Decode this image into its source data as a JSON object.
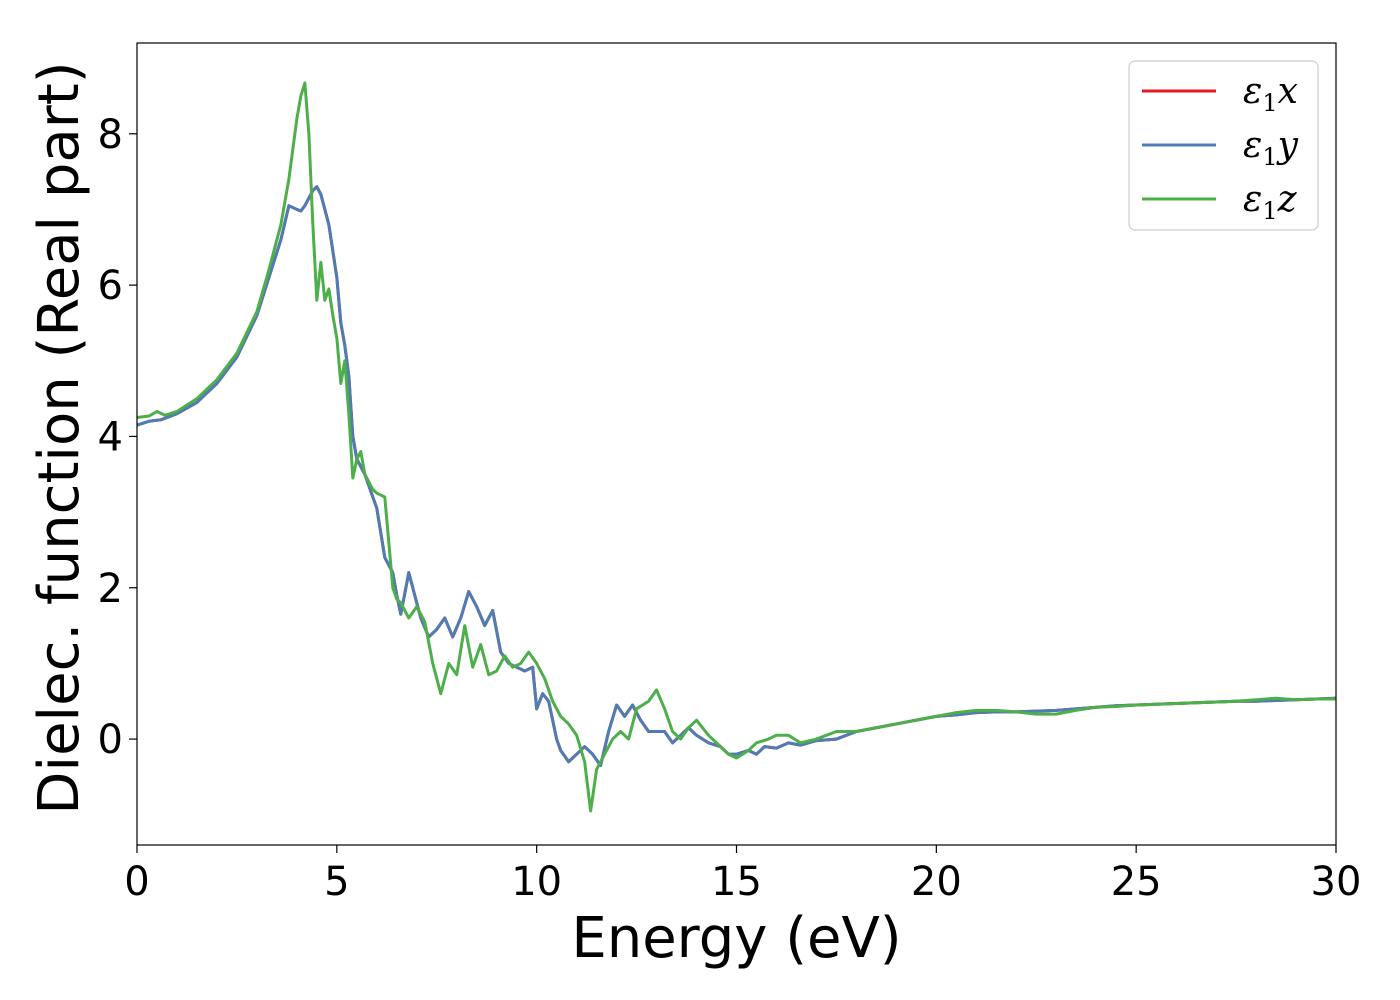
{
  "chart_data": {
    "type": "line",
    "title": "",
    "xlabel": "Energy (eV)",
    "ylabel": "Dielec. function (Real part)",
    "xlim": [
      0,
      30
    ],
    "ylim": [
      -1.4,
      9.2
    ],
    "xticks": [
      0,
      5,
      10,
      15,
      20,
      25,
      30
    ],
    "xtick_labels": [
      "0",
      "5",
      "10",
      "15",
      "20",
      "25",
      "30"
    ],
    "yticks": [
      0,
      2,
      4,
      6,
      8
    ],
    "ytick_labels": [
      "0",
      "2",
      "4",
      "6",
      "8"
    ],
    "grid": false,
    "legend_position": "top-right",
    "series": [
      {
        "name": "ε1x",
        "legend_main": "ε",
        "legend_sub": "1",
        "legend_var": "x",
        "color": "#e41a1c",
        "x": [
          0,
          0.3,
          0.6,
          1,
          1.5,
          2,
          2.5,
          3,
          3.3,
          3.6,
          3.8,
          4.0,
          4.1,
          4.2,
          4.3,
          4.4,
          4.5,
          4.6,
          4.8,
          5.0,
          5.1,
          5.2,
          5.3,
          5.4,
          5.5,
          5.7,
          5.9,
          6.0,
          6.2,
          6.4,
          6.5,
          6.6,
          6.8,
          6.9,
          7.1,
          7.3,
          7.5,
          7.7,
          7.9,
          8.1,
          8.3,
          8.5,
          8.7,
          8.9,
          9.1,
          9.3,
          9.5,
          9.7,
          9.9,
          10.0,
          10.15,
          10.3,
          10.5,
          10.6,
          10.8,
          11.0,
          11.2,
          11.4,
          11.6,
          11.8,
          12.0,
          12.2,
          12.4,
          12.6,
          12.8,
          13.0,
          13.2,
          13.4,
          13.6,
          13.8,
          14.0,
          14.3,
          14.6,
          14.8,
          15.0,
          15.3,
          15.5,
          15.7,
          16.0,
          16.3,
          16.6,
          17.0,
          17.5,
          18.0,
          18.5,
          19.0,
          19.5,
          20.0,
          20.5,
          21.0,
          21.5,
          22.0,
          22.5,
          23.0,
          23.5,
          24.0,
          24.5,
          25.0,
          25.5,
          26.0,
          26.5,
          27.0,
          27.5,
          28.0,
          28.5,
          29.0,
          29.5,
          30.0
        ],
        "y": [
          4.15,
          4.2,
          4.22,
          4.3,
          4.45,
          4.7,
          5.05,
          5.6,
          6.1,
          6.6,
          7.05,
          7.0,
          6.98,
          7.05,
          7.15,
          7.25,
          7.3,
          7.2,
          6.8,
          6.1,
          5.5,
          5.2,
          4.8,
          4.0,
          3.7,
          3.5,
          3.2,
          3.05,
          2.4,
          2.2,
          1.9,
          1.65,
          2.2,
          2.0,
          1.6,
          1.35,
          1.45,
          1.6,
          1.35,
          1.6,
          1.95,
          1.75,
          1.5,
          1.7,
          1.15,
          1.0,
          0.95,
          0.9,
          0.95,
          0.4,
          0.6,
          0.5,
          0.0,
          -0.15,
          -0.3,
          -0.2,
          -0.1,
          -0.2,
          -0.35,
          0.1,
          0.45,
          0.3,
          0.45,
          0.25,
          0.1,
          0.1,
          0.1,
          -0.05,
          0.05,
          0.15,
          0.05,
          -0.05,
          -0.1,
          -0.2,
          -0.2,
          -0.15,
          -0.2,
          -0.1,
          -0.12,
          -0.05,
          -0.08,
          -0.02,
          0.0,
          0.1,
          0.15,
          0.2,
          0.25,
          0.3,
          0.32,
          0.35,
          0.36,
          0.36,
          0.37,
          0.38,
          0.4,
          0.42,
          0.44,
          0.45,
          0.46,
          0.47,
          0.48,
          0.49,
          0.5,
          0.5,
          0.51,
          0.52,
          0.53,
          0.54
        ]
      },
      {
        "name": "ε1y",
        "legend_main": "ε",
        "legend_sub": "1",
        "legend_var": "y",
        "color": "#4e7cb5",
        "x": [
          0,
          0.3,
          0.6,
          1,
          1.5,
          2,
          2.5,
          3,
          3.3,
          3.6,
          3.8,
          4.0,
          4.1,
          4.2,
          4.3,
          4.4,
          4.5,
          4.6,
          4.8,
          5.0,
          5.1,
          5.2,
          5.3,
          5.4,
          5.5,
          5.7,
          5.9,
          6.0,
          6.2,
          6.4,
          6.5,
          6.6,
          6.8,
          6.9,
          7.1,
          7.3,
          7.5,
          7.7,
          7.9,
          8.1,
          8.3,
          8.5,
          8.7,
          8.9,
          9.1,
          9.3,
          9.5,
          9.7,
          9.9,
          10.0,
          10.15,
          10.3,
          10.5,
          10.6,
          10.8,
          11.0,
          11.2,
          11.4,
          11.6,
          11.8,
          12.0,
          12.2,
          12.4,
          12.6,
          12.8,
          13.0,
          13.2,
          13.4,
          13.6,
          13.8,
          14.0,
          14.3,
          14.6,
          14.8,
          15.0,
          15.3,
          15.5,
          15.7,
          16.0,
          16.3,
          16.6,
          17.0,
          17.5,
          18.0,
          18.5,
          19.0,
          19.5,
          20.0,
          20.5,
          21.0,
          21.5,
          22.0,
          22.5,
          23.0,
          23.5,
          24.0,
          24.5,
          25.0,
          25.5,
          26.0,
          26.5,
          27.0,
          27.5,
          28.0,
          28.5,
          29.0,
          29.5,
          30.0
        ],
        "y": [
          4.15,
          4.2,
          4.22,
          4.3,
          4.45,
          4.7,
          5.05,
          5.6,
          6.1,
          6.6,
          7.05,
          7.0,
          6.98,
          7.05,
          7.15,
          7.25,
          7.3,
          7.2,
          6.8,
          6.1,
          5.5,
          5.2,
          4.8,
          4.0,
          3.7,
          3.5,
          3.2,
          3.05,
          2.4,
          2.2,
          1.9,
          1.65,
          2.2,
          2.0,
          1.6,
          1.35,
          1.45,
          1.6,
          1.35,
          1.6,
          1.95,
          1.75,
          1.5,
          1.7,
          1.15,
          1.0,
          0.95,
          0.9,
          0.95,
          0.4,
          0.6,
          0.5,
          0.0,
          -0.15,
          -0.3,
          -0.2,
          -0.1,
          -0.2,
          -0.35,
          0.1,
          0.45,
          0.3,
          0.45,
          0.25,
          0.1,
          0.1,
          0.1,
          -0.05,
          0.05,
          0.15,
          0.05,
          -0.05,
          -0.1,
          -0.2,
          -0.2,
          -0.15,
          -0.2,
          -0.1,
          -0.12,
          -0.05,
          -0.08,
          -0.02,
          0.0,
          0.1,
          0.15,
          0.2,
          0.25,
          0.3,
          0.32,
          0.35,
          0.36,
          0.36,
          0.37,
          0.38,
          0.4,
          0.42,
          0.44,
          0.45,
          0.46,
          0.47,
          0.48,
          0.49,
          0.5,
          0.5,
          0.51,
          0.52,
          0.53,
          0.54
        ]
      },
      {
        "name": "ε1z",
        "legend_main": "ε",
        "legend_sub": "1",
        "legend_var": "z",
        "color": "#4daf4a",
        "x": [
          0,
          0.3,
          0.5,
          0.7,
          1,
          1.5,
          2,
          2.5,
          3,
          3.3,
          3.6,
          3.8,
          4.0,
          4.1,
          4.2,
          4.3,
          4.4,
          4.5,
          4.6,
          4.7,
          4.8,
          4.9,
          5.0,
          5.1,
          5.2,
          5.3,
          5.4,
          5.5,
          5.6,
          5.7,
          5.9,
          6.0,
          6.2,
          6.4,
          6.5,
          6.6,
          6.8,
          7.0,
          7.2,
          7.4,
          7.6,
          7.8,
          8.0,
          8.2,
          8.4,
          8.6,
          8.8,
          9.0,
          9.2,
          9.4,
          9.6,
          9.8,
          10.0,
          10.2,
          10.4,
          10.6,
          10.8,
          11.0,
          11.2,
          11.35,
          11.5,
          11.7,
          11.9,
          12.1,
          12.3,
          12.5,
          12.8,
          13.0,
          13.2,
          13.4,
          13.6,
          13.8,
          14.0,
          14.3,
          14.6,
          14.8,
          15.0,
          15.3,
          15.5,
          15.8,
          16.0,
          16.3,
          16.6,
          17.0,
          17.5,
          18.0,
          18.5,
          19.0,
          19.5,
          20.0,
          20.5,
          21.0,
          21.5,
          22.0,
          22.5,
          23.0,
          23.5,
          24.0,
          24.5,
          25.0,
          25.5,
          26.0,
          26.5,
          27.0,
          27.5,
          28.0,
          28.5,
          29.0,
          29.5,
          30.0
        ],
        "y": [
          4.25,
          4.27,
          4.33,
          4.28,
          4.33,
          4.5,
          4.75,
          5.1,
          5.65,
          6.2,
          6.8,
          7.4,
          8.2,
          8.5,
          8.67,
          8.0,
          6.8,
          5.8,
          6.3,
          5.8,
          5.95,
          5.6,
          5.3,
          4.7,
          5.0,
          4.3,
          3.45,
          3.7,
          3.8,
          3.5,
          3.3,
          3.25,
          3.2,
          2.0,
          1.85,
          1.8,
          1.6,
          1.75,
          1.55,
          1.0,
          0.6,
          1.0,
          0.85,
          1.5,
          0.95,
          1.25,
          0.85,
          0.9,
          1.1,
          0.95,
          1.0,
          1.15,
          1.0,
          0.8,
          0.5,
          0.3,
          0.2,
          0.05,
          -0.3,
          -0.95,
          -0.4,
          -0.2,
          0.0,
          0.1,
          0.0,
          0.4,
          0.5,
          0.65,
          0.4,
          0.1,
          0.0,
          0.15,
          0.25,
          0.05,
          -0.1,
          -0.2,
          -0.25,
          -0.15,
          -0.05,
          0.0,
          0.05,
          0.05,
          -0.05,
          0.0,
          0.1,
          0.1,
          0.15,
          0.2,
          0.25,
          0.3,
          0.35,
          0.38,
          0.38,
          0.36,
          0.33,
          0.33,
          0.38,
          0.42,
          0.43,
          0.45,
          0.46,
          0.47,
          0.48,
          0.49,
          0.5,
          0.52,
          0.54,
          0.52,
          0.53,
          0.53
        ]
      }
    ]
  }
}
